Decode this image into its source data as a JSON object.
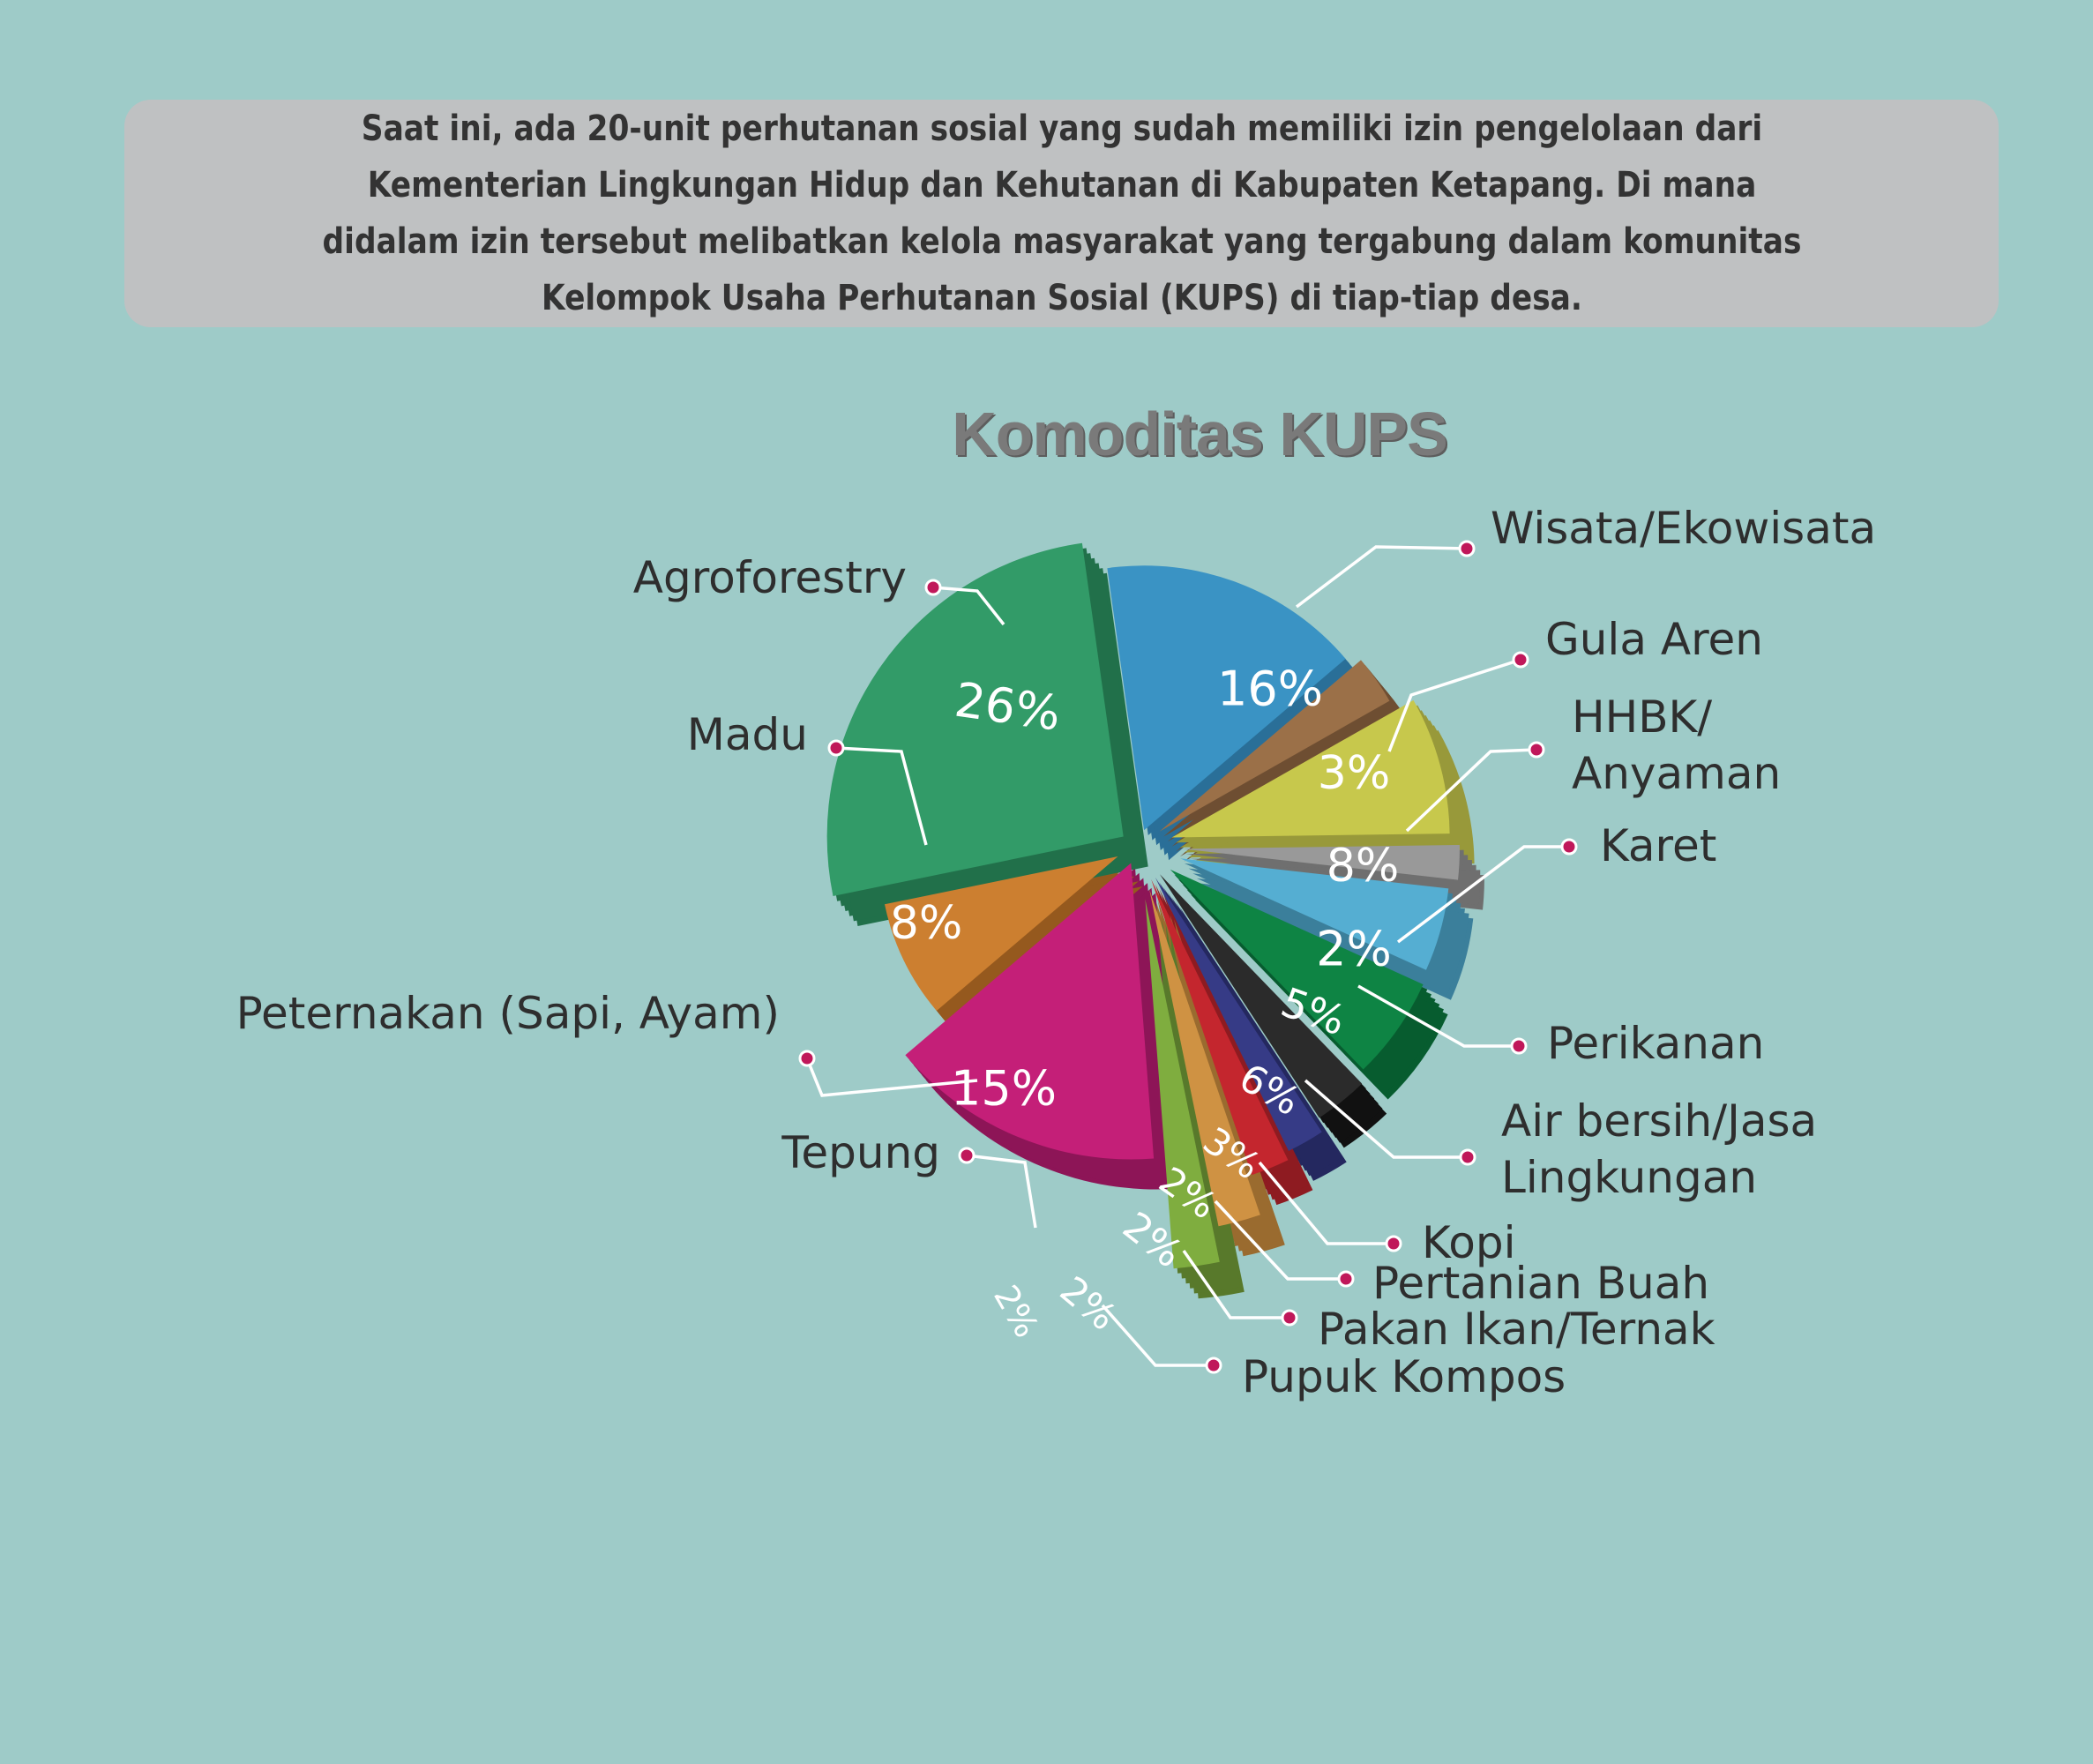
{
  "intro": {
    "text": "Saat ini, ada 20-unit perhutanan sosial yang sudah memiliki izin pengelolaan dari Kementerian Lingkungan Hidup dan Kehutanan di Kabupaten Ketapang. Di mana didalam izin tersebut melibatkan kelola masyarakat yang tergabung dalam komunitas Kelompok Usaha Perhutanan Sosial (KUPS) di tiap-tiap desa."
  },
  "chart_data": {
    "type": "pie",
    "title": "Komoditas KUPS",
    "style": "exploded 3d pie with callout labels",
    "slices": [
      {
        "label": "Wisata/Ekowisata",
        "value": 16,
        "value_label": "16%",
        "color": "#3a93c4",
        "side_color": "#2a6f98",
        "label_color": "#ffffff"
      },
      {
        "label": "Gula Aren",
        "value": 3,
        "value_label": "3%",
        "color": "#9b7048",
        "side_color": "#6e4e32",
        "label_color": "#ffffff"
      },
      {
        "label": "HHBK/ Anyaman",
        "label_lines": [
          "HHBK/",
          "Anyaman"
        ],
        "value": 8,
        "value_label": "8%",
        "color": "#c7c84c",
        "side_color": "#98993a",
        "label_color": "#ffffff"
      },
      {
        "label": "Karet",
        "value": 2,
        "value_label": "2%",
        "color": "#999999",
        "side_color": "#6f6f6f",
        "label_color": "#ffffff"
      },
      {
        "label": "Perikanan",
        "value": 5,
        "value_label": "5%",
        "color": "#55aed2",
        "side_color": "#3b7f9b",
        "label_color": "#ffffff"
      },
      {
        "label": "Air bersih/Jasa Lingkungan",
        "label_lines": [
          "Air bersih/Jasa",
          "Lingkungan"
        ],
        "value": 6,
        "value_label": "6%",
        "color": "#0e8444",
        "side_color": "#075c2f",
        "label_color": "#ffffff"
      },
      {
        "label": "Kopi",
        "value": 3,
        "value_label": "3%",
        "color": "#2b2b2b",
        "side_color": "#111111",
        "label_color": "#ffffff"
      },
      {
        "label": "Pertanian Buah",
        "value": 2,
        "value_label": "2%",
        "color": "#363b86",
        "side_color": "#24285f",
        "label_color": "#ffffff"
      },
      {
        "label": "Pakan Ikan/Ternak",
        "value": 2,
        "value_label": "2%",
        "color": "#c4262e",
        "side_color": "#8e1b21",
        "label_color": "#ffffff"
      },
      {
        "label": "Pupuk Kompos",
        "value": 2,
        "value_label": "2%",
        "color": "#cf9243",
        "side_color": "#9a6b2f",
        "label_color": "#ffffff"
      },
      {
        "label": "Tepung",
        "value": 2,
        "value_label": "2%",
        "color": "#7fad3f",
        "side_color": "#58792b",
        "label_color": "#ffffff"
      },
      {
        "label": "Peternakan (Sapi, Ayam)",
        "value": 15,
        "value_label": "15%",
        "color": "#c41f78",
        "side_color": "#8d1557",
        "label_color": "#ffffff"
      },
      {
        "label": "Madu",
        "value": 8,
        "value_label": "8%",
        "color": "#cc7f30",
        "side_color": "#95591e",
        "label_color": "#ffffff"
      },
      {
        "label": "Agroforestry",
        "value": 26,
        "value_label": "26%",
        "color": "#329b68",
        "side_color": "#21704a",
        "label_color": "#ffffff"
      }
    ],
    "colors": {
      "background": "#9ecbc8",
      "leader_line": "#ffffff",
      "leader_dot": "#c0185a",
      "category_text": "#2e2e2e"
    }
  }
}
